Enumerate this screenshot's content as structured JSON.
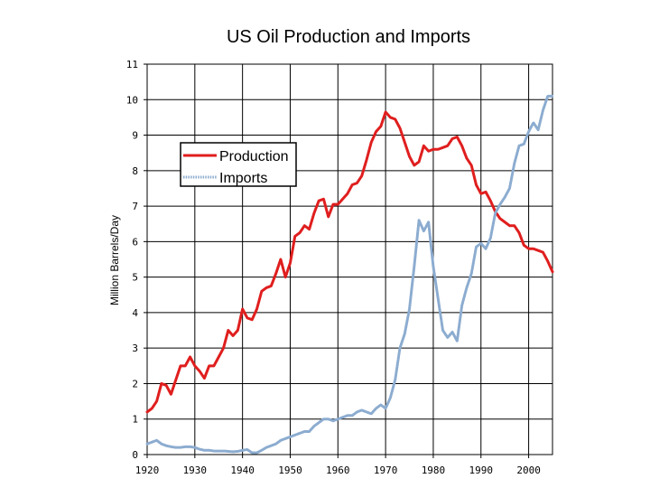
{
  "chart_data": {
    "type": "line",
    "title": "US Oil Production and Imports",
    "xlabel": "",
    "ylabel": "Million Barrels/Day",
    "xlim": [
      1920,
      2005
    ],
    "ylim": [
      0,
      11
    ],
    "grid": true,
    "legend_position": "top-left",
    "x_ticks": [
      1920,
      1930,
      1940,
      1950,
      1960,
      1970,
      1980,
      1990,
      2000
    ],
    "x_tick_labels": [
      "1920",
      "1930",
      "1940",
      "1950",
      "1960",
      "1970",
      "1980",
      "1990",
      "2000"
    ],
    "y_ticks": [
      0,
      1,
      2,
      3,
      4,
      5,
      6,
      7,
      8,
      9,
      10,
      11
    ],
    "y_tick_labels": [
      "0",
      "1",
      "2",
      "3",
      "4",
      "5",
      "6",
      "7",
      "8",
      "9",
      "10",
      "11"
    ],
    "series": [
      {
        "name": "Production",
        "color": "#e01e1e",
        "style": "solid",
        "points": [
          [
            1920,
            1.2
          ],
          [
            1921,
            1.3
          ],
          [
            1922,
            1.5
          ],
          [
            1923,
            2.0
          ],
          [
            1924,
            1.95
          ],
          [
            1925,
            1.7
          ],
          [
            1926,
            2.1
          ],
          [
            1927,
            2.5
          ],
          [
            1928,
            2.5
          ],
          [
            1929,
            2.75
          ],
          [
            1930,
            2.5
          ],
          [
            1931,
            2.35
          ],
          [
            1932,
            2.15
          ],
          [
            1933,
            2.5
          ],
          [
            1934,
            2.5
          ],
          [
            1935,
            2.75
          ],
          [
            1936,
            3.0
          ],
          [
            1937,
            3.5
          ],
          [
            1938,
            3.35
          ],
          [
            1939,
            3.5
          ],
          [
            1940,
            4.1
          ],
          [
            1941,
            3.85
          ],
          [
            1942,
            3.8
          ],
          [
            1943,
            4.1
          ],
          [
            1944,
            4.6
          ],
          [
            1945,
            4.7
          ],
          [
            1946,
            4.75
          ],
          [
            1947,
            5.1
          ],
          [
            1948,
            5.5
          ],
          [
            1949,
            5.0
          ],
          [
            1950,
            5.4
          ],
          [
            1951,
            6.15
          ],
          [
            1952,
            6.25
          ],
          [
            1953,
            6.45
          ],
          [
            1954,
            6.35
          ],
          [
            1955,
            6.8
          ],
          [
            1956,
            7.15
          ],
          [
            1957,
            7.2
          ],
          [
            1958,
            6.7
          ],
          [
            1959,
            7.05
          ],
          [
            1960,
            7.05
          ],
          [
            1961,
            7.2
          ],
          [
            1962,
            7.35
          ],
          [
            1963,
            7.6
          ],
          [
            1964,
            7.65
          ],
          [
            1965,
            7.85
          ],
          [
            1966,
            8.3
          ],
          [
            1967,
            8.8
          ],
          [
            1968,
            9.1
          ],
          [
            1969,
            9.25
          ],
          [
            1970,
            9.65
          ],
          [
            1971,
            9.5
          ],
          [
            1972,
            9.45
          ],
          [
            1973,
            9.2
          ],
          [
            1974,
            8.8
          ],
          [
            1975,
            8.4
          ],
          [
            1976,
            8.15
          ],
          [
            1977,
            8.25
          ],
          [
            1978,
            8.7
          ],
          [
            1979,
            8.55
          ],
          [
            1980,
            8.6
          ],
          [
            1981,
            8.6
          ],
          [
            1982,
            8.65
          ],
          [
            1983,
            8.7
          ],
          [
            1984,
            8.9
          ],
          [
            1985,
            8.95
          ],
          [
            1986,
            8.7
          ],
          [
            1987,
            8.35
          ],
          [
            1988,
            8.15
          ],
          [
            1989,
            7.6
          ],
          [
            1990,
            7.35
          ],
          [
            1991,
            7.4
          ],
          [
            1992,
            7.15
          ],
          [
            1993,
            6.85
          ],
          [
            1994,
            6.65
          ],
          [
            1995,
            6.55
          ],
          [
            1996,
            6.45
          ],
          [
            1997,
            6.45
          ],
          [
            1998,
            6.25
          ],
          [
            1999,
            5.9
          ],
          [
            2000,
            5.8
          ],
          [
            2001,
            5.8
          ],
          [
            2002,
            5.75
          ],
          [
            2003,
            5.7
          ],
          [
            2004,
            5.45
          ],
          [
            2005,
            5.15
          ]
        ]
      },
      {
        "name": "Imports",
        "color": "#8cacd0",
        "style": "dotted",
        "points": [
          [
            1920,
            0.3
          ],
          [
            1921,
            0.35
          ],
          [
            1922,
            0.4
          ],
          [
            1923,
            0.3
          ],
          [
            1924,
            0.25
          ],
          [
            1925,
            0.22
          ],
          [
            1926,
            0.2
          ],
          [
            1927,
            0.2
          ],
          [
            1928,
            0.22
          ],
          [
            1929,
            0.22
          ],
          [
            1930,
            0.2
          ],
          [
            1931,
            0.15
          ],
          [
            1932,
            0.12
          ],
          [
            1933,
            0.12
          ],
          [
            1934,
            0.1
          ],
          [
            1935,
            0.1
          ],
          [
            1936,
            0.1
          ],
          [
            1937,
            0.09
          ],
          [
            1938,
            0.08
          ],
          [
            1939,
            0.09
          ],
          [
            1940,
            0.12
          ],
          [
            1941,
            0.14
          ],
          [
            1942,
            0.05
          ],
          [
            1943,
            0.05
          ],
          [
            1944,
            0.12
          ],
          [
            1945,
            0.2
          ],
          [
            1946,
            0.25
          ],
          [
            1947,
            0.3
          ],
          [
            1948,
            0.4
          ],
          [
            1949,
            0.45
          ],
          [
            1950,
            0.5
          ],
          [
            1951,
            0.55
          ],
          [
            1952,
            0.6
          ],
          [
            1953,
            0.65
          ],
          [
            1954,
            0.65
          ],
          [
            1955,
            0.8
          ],
          [
            1956,
            0.9
          ],
          [
            1957,
            1.0
          ],
          [
            1958,
            1.0
          ],
          [
            1959,
            0.95
          ],
          [
            1960,
            1.0
          ],
          [
            1961,
            1.05
          ],
          [
            1962,
            1.1
          ],
          [
            1963,
            1.1
          ],
          [
            1964,
            1.2
          ],
          [
            1965,
            1.25
          ],
          [
            1966,
            1.2
          ],
          [
            1967,
            1.15
          ],
          [
            1968,
            1.3
          ],
          [
            1969,
            1.4
          ],
          [
            1970,
            1.3
          ],
          [
            1971,
            1.6
          ],
          [
            1972,
            2.1
          ],
          [
            1973,
            3.0
          ],
          [
            1974,
            3.4
          ],
          [
            1975,
            4.1
          ],
          [
            1976,
            5.3
          ],
          [
            1977,
            6.6
          ],
          [
            1978,
            6.3
          ],
          [
            1979,
            6.55
          ],
          [
            1980,
            5.3
          ],
          [
            1981,
            4.4
          ],
          [
            1982,
            3.5
          ],
          [
            1983,
            3.3
          ],
          [
            1984,
            3.45
          ],
          [
            1985,
            3.2
          ],
          [
            1986,
            4.2
          ],
          [
            1987,
            4.7
          ],
          [
            1988,
            5.1
          ],
          [
            1989,
            5.85
          ],
          [
            1990,
            5.95
          ],
          [
            1991,
            5.8
          ],
          [
            1992,
            6.1
          ],
          [
            1993,
            6.8
          ],
          [
            1994,
            7.05
          ],
          [
            1995,
            7.25
          ],
          [
            1996,
            7.5
          ],
          [
            1997,
            8.2
          ],
          [
            1998,
            8.7
          ],
          [
            1999,
            8.75
          ],
          [
            2000,
            9.1
          ],
          [
            2001,
            9.35
          ],
          [
            2002,
            9.15
          ],
          [
            2003,
            9.7
          ],
          [
            2004,
            10.1
          ],
          [
            2005,
            10.1
          ]
        ]
      }
    ]
  }
}
